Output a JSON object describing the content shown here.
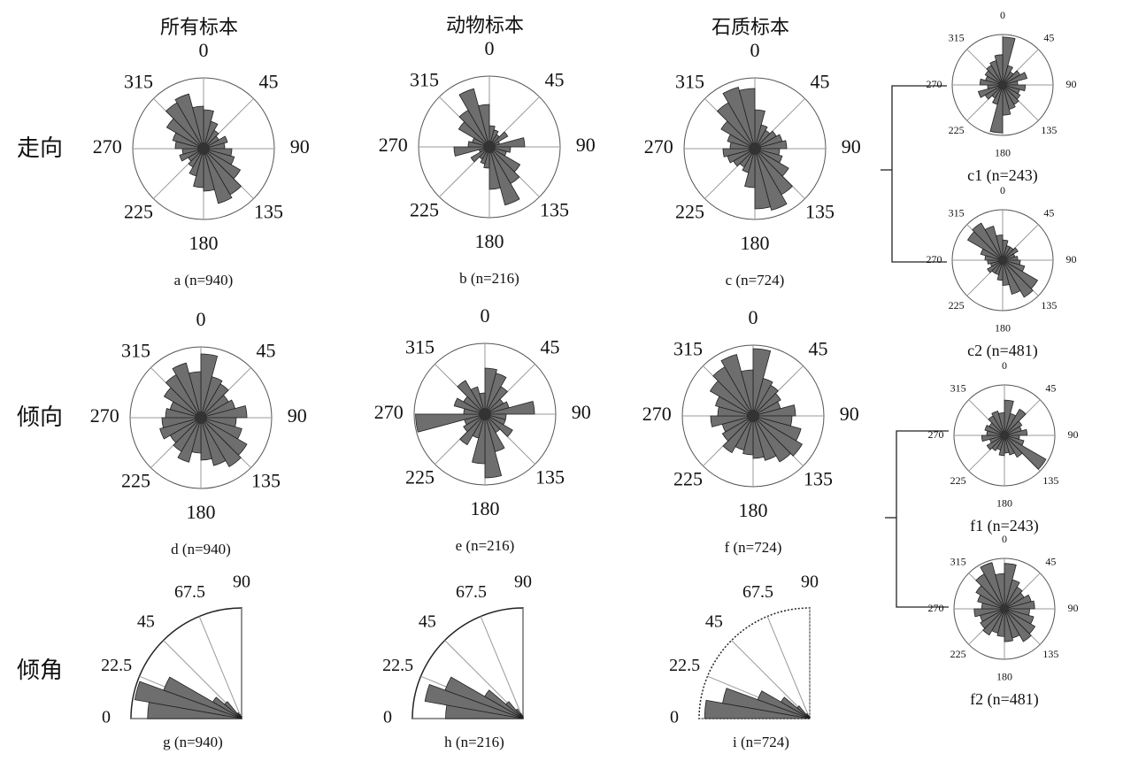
{
  "chart_data": [
    {
      "type": "rose",
      "title": "所有标本",
      "row_label": "走向",
      "caption": "a (n=940)",
      "bin_width": 15,
      "rlim": [
        0,
        1
      ],
      "angle_ticks": [
        0,
        45,
        90,
        135,
        180,
        225,
        270,
        315
      ],
      "values": [
        0.55,
        0.4,
        0.3,
        0.25,
        0.35,
        0.3,
        0.4,
        0.45,
        0.6,
        0.75,
        0.8,
        0.6,
        0.55,
        0.4,
        0.3,
        0.25,
        0.35,
        0.3,
        0.4,
        0.45,
        0.6,
        0.75,
        0.8,
        0.6
      ]
    },
    {
      "type": "rose",
      "title": "动物标本",
      "caption": "b (n=216)",
      "bin_width": 15,
      "rlim": [
        0,
        1
      ],
      "angle_ticks": [
        0,
        45,
        90,
        135,
        180,
        225,
        270,
        315
      ],
      "values": [
        0.3,
        0.25,
        0.2,
        0.3,
        0.15,
        0.5,
        0.3,
        0.25,
        0.5,
        0.6,
        0.85,
        0.6,
        0.3,
        0.25,
        0.2,
        0.3,
        0.15,
        0.5,
        0.3,
        0.25,
        0.5,
        0.6,
        0.85,
        0.6
      ]
    },
    {
      "type": "rose",
      "title": "石质标本",
      "caption": "c (n=724)",
      "bin_width": 15,
      "rlim": [
        0,
        1
      ],
      "angle_ticks": [
        0,
        45,
        90,
        135,
        180,
        225,
        270,
        315
      ],
      "values": [
        0.55,
        0.35,
        0.3,
        0.35,
        0.4,
        0.45,
        0.35,
        0.4,
        0.55,
        0.75,
        0.9,
        0.85,
        0.55,
        0.35,
        0.3,
        0.35,
        0.4,
        0.45,
        0.35,
        0.4,
        0.55,
        0.75,
        0.9,
        0.85
      ]
    },
    {
      "type": "rose",
      "caption": "c1 (n=243)",
      "bin_width": 15,
      "rlim": [
        0,
        1
      ],
      "angle_ticks": [
        0,
        45,
        90,
        135,
        180,
        225,
        270,
        315
      ],
      "values": [
        0.95,
        0.4,
        0.3,
        0.4,
        0.5,
        0.3,
        0.45,
        0.35,
        0.4,
        0.45,
        0.5,
        0.6,
        0.95,
        0.4,
        0.3,
        0.4,
        0.5,
        0.3,
        0.45,
        0.35,
        0.4,
        0.45,
        0.5,
        0.6
      ]
    },
    {
      "type": "rose",
      "caption": "c2 (n=481)",
      "bin_width": 15,
      "rlim": [
        0,
        1
      ],
      "angle_ticks": [
        0,
        45,
        90,
        135,
        180,
        225,
        270,
        315
      ],
      "values": [
        0.4,
        0.3,
        0.3,
        0.35,
        0.25,
        0.3,
        0.35,
        0.45,
        0.8,
        0.85,
        0.7,
        0.5,
        0.4,
        0.3,
        0.3,
        0.35,
        0.25,
        0.3,
        0.35,
        0.45,
        0.8,
        0.85,
        0.7,
        0.5
      ]
    },
    {
      "type": "rose",
      "row_label": "倾向",
      "caption": "d (n=940)",
      "bin_width": 15,
      "rlim": [
        0,
        1
      ],
      "angle_ticks": [
        0,
        45,
        90,
        135,
        180,
        225,
        270,
        315
      ],
      "values": [
        0.9,
        0.6,
        0.55,
        0.45,
        0.5,
        0.65,
        0.5,
        0.6,
        0.75,
        0.8,
        0.7,
        0.6,
        0.5,
        0.65,
        0.55,
        0.5,
        0.6,
        0.55,
        0.5,
        0.45,
        0.6,
        0.7,
        0.8,
        0.65
      ]
    },
    {
      "type": "rose",
      "caption": "e (n=216)",
      "bin_width": 15,
      "rlim": [
        0,
        1
      ],
      "angle_ticks": [
        0,
        45,
        90,
        135,
        180,
        225,
        270,
        315
      ],
      "values": [
        0.65,
        0.6,
        0.45,
        0.3,
        0.35,
        0.7,
        0.3,
        0.3,
        0.45,
        0.3,
        0.55,
        0.9,
        0.7,
        0.35,
        0.5,
        0.35,
        0.3,
        0.98,
        0.3,
        0.45,
        0.35,
        0.55,
        0.4,
        0.3
      ]
    },
    {
      "type": "rose",
      "caption": "f (n=724)",
      "bin_width": 15,
      "rlim": [
        0,
        1
      ],
      "angle_ticks": [
        0,
        45,
        90,
        135,
        180,
        225,
        270,
        315
      ],
      "values": [
        0.95,
        0.55,
        0.5,
        0.45,
        0.4,
        0.6,
        0.55,
        0.7,
        0.8,
        0.75,
        0.65,
        0.6,
        0.55,
        0.5,
        0.6,
        0.5,
        0.45,
        0.6,
        0.5,
        0.55,
        0.7,
        0.8,
        0.9,
        0.65
      ]
    },
    {
      "type": "rose",
      "caption": "f1 (n=243)",
      "bin_width": 15,
      "rlim": [
        0,
        1
      ],
      "angle_ticks": [
        0,
        45,
        90,
        135,
        180,
        225,
        270,
        315
      ],
      "values": [
        0.7,
        0.45,
        0.6,
        0.4,
        0.35,
        0.45,
        0.3,
        0.4,
        0.95,
        0.5,
        0.4,
        0.35,
        0.4,
        0.3,
        0.35,
        0.4,
        0.3,
        0.45,
        0.35,
        0.4,
        0.35,
        0.45,
        0.5,
        0.45
      ]
    },
    {
      "type": "rose",
      "caption": "f2 (n=481)",
      "bin_width": 15,
      "rlim": [
        0,
        1
      ],
      "angle_ticks": [
        0,
        45,
        90,
        135,
        180,
        225,
        270,
        315
      ],
      "values": [
        0.9,
        0.6,
        0.5,
        0.45,
        0.55,
        0.6,
        0.5,
        0.6,
        0.7,
        0.75,
        0.6,
        0.65,
        0.55,
        0.5,
        0.6,
        0.55,
        0.5,
        0.6,
        0.45,
        0.55,
        0.65,
        0.8,
        0.95,
        0.7
      ]
    },
    {
      "type": "quadrant",
      "row_label": "倾角",
      "caption": "g (n=940)",
      "bin_width": 10,
      "rlim": [
        0,
        1
      ],
      "outline": "solid",
      "angle_ticks": [
        0,
        22.5,
        45,
        67.5,
        90
      ],
      "values": [
        0.85,
        0.98,
        0.75,
        0.3,
        0.2,
        0.06,
        0.04,
        0.02,
        0.02
      ]
    },
    {
      "type": "quadrant",
      "caption": "h (n=216)",
      "bin_width": 10,
      "rlim": [
        0,
        1
      ],
      "outline": "solid",
      "angle_ticks": [
        0,
        22.5,
        45,
        67.5,
        90
      ],
      "values": [
        0.7,
        0.9,
        0.75,
        0.4,
        0.2,
        0.1,
        0.05,
        0.03,
        0.02
      ]
    },
    {
      "type": "quadrant",
      "caption": "i (n=724)",
      "bin_width": 10,
      "rlim": [
        0,
        1
      ],
      "outline": "dotted",
      "angle_ticks": [
        0,
        22.5,
        45,
        67.5,
        90
      ],
      "values": [
        0.95,
        0.8,
        0.5,
        0.3,
        0.15,
        0.05,
        0.03,
        0.02,
        0.02
      ]
    }
  ]
}
